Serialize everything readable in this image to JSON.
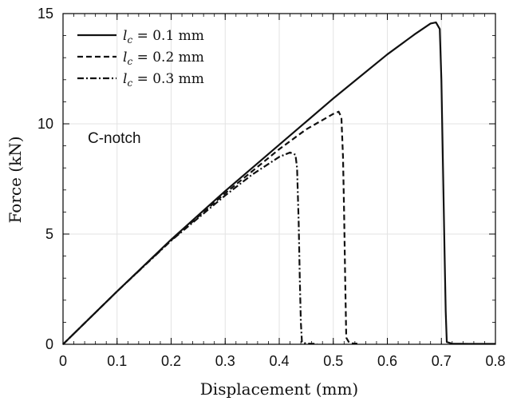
{
  "chart_data": {
    "type": "line",
    "xlabel": "Displacement (mm)",
    "ylabel": "Force (kN)",
    "xlim": [
      0,
      0.8
    ],
    "ylim": [
      0,
      15
    ],
    "xticks": [
      "0",
      "0.1",
      "0.2",
      "0.3",
      "0.4",
      "0.5",
      "0.6",
      "0.7",
      "0.8"
    ],
    "yticks": [
      "0",
      "5",
      "10",
      "15"
    ],
    "grid": true,
    "legend_position": "top-left",
    "annotation": "C-notch",
    "series": [
      {
        "name": "l_c = 0.1 mm",
        "legend_var": "l",
        "legend_sub": "c",
        "legend_rest": " = 0.1 mm",
        "style": "solid",
        "x": [
          0,
          0.1,
          0.2,
          0.3,
          0.4,
          0.45,
          0.5,
          0.55,
          0.6,
          0.65,
          0.68,
          0.69,
          0.697,
          0.7,
          0.703,
          0.706,
          0.708,
          0.71,
          0.72,
          0.75,
          0.8
        ],
        "y": [
          0,
          2.4,
          4.75,
          6.95,
          9.05,
          10.1,
          11.15,
          12.15,
          13.15,
          14.05,
          14.55,
          14.6,
          14.3,
          12.0,
          8.0,
          4.0,
          1.5,
          0.1,
          0.03,
          0.02,
          0.02
        ]
      },
      {
        "name": "l_c = 0.2 mm",
        "legend_var": "l",
        "legend_sub": "c",
        "legend_rest": " = 0.2 mm",
        "style": "dashed",
        "x": [
          0,
          0.1,
          0.2,
          0.3,
          0.35,
          0.4,
          0.45,
          0.5,
          0.51,
          0.515,
          0.518,
          0.52,
          0.522,
          0.524,
          0.53,
          0.55
        ],
        "y": [
          0,
          2.4,
          4.72,
          6.85,
          7.85,
          8.85,
          9.75,
          10.45,
          10.55,
          10.3,
          8.5,
          6.0,
          3.0,
          0.3,
          0.05,
          0.02
        ]
      },
      {
        "name": "l_c = 0.3 mm",
        "legend_var": "l",
        "legend_sub": "c",
        "legend_rest": " = 0.3 mm",
        "style": "dashdot",
        "x": [
          0,
          0.1,
          0.2,
          0.3,
          0.35,
          0.4,
          0.42,
          0.43,
          0.433,
          0.436,
          0.438,
          0.44,
          0.442,
          0.45,
          0.47
        ],
        "y": [
          0,
          2.4,
          4.7,
          6.75,
          7.7,
          8.5,
          8.7,
          8.6,
          8.0,
          5.5,
          3.0,
          1.0,
          0.1,
          0.03,
          0.02
        ]
      }
    ]
  }
}
